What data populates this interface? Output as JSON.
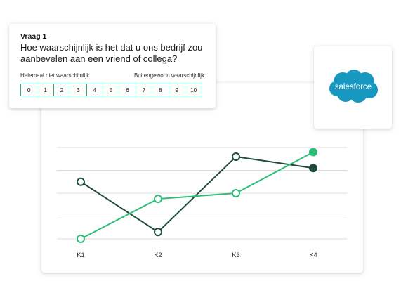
{
  "survey": {
    "question_label": "Vraag 1",
    "question_text": "Hoe waarschijnlijk is het dat u ons bedrijf zou aanbevelen aan een vriend of collega?",
    "scale_min_label": "Helemaal niet waarschijnlijk",
    "scale_max_label": "Buitengewoon waarschijnlijk",
    "scale_values": [
      "0",
      "1",
      "2",
      "3",
      "4",
      "5",
      "6",
      "7",
      "8",
      "9",
      "10"
    ]
  },
  "logo": {
    "text": "salesforce",
    "color": "#1798c1"
  },
  "chart_data": {
    "type": "line",
    "categories": [
      "K1",
      "K2",
      "K3",
      "K4"
    ],
    "ylim": [
      0,
      4
    ],
    "grid": true,
    "series": [
      {
        "values": [
          2.5,
          0.3,
          3.6,
          3.1
        ],
        "color": "#1f4d3a",
        "last_filled": true
      },
      {
        "values": [
          0.0,
          1.75,
          2.0,
          3.8
        ],
        "color": "#2dbd78",
        "last_filled": true
      }
    ]
  }
}
